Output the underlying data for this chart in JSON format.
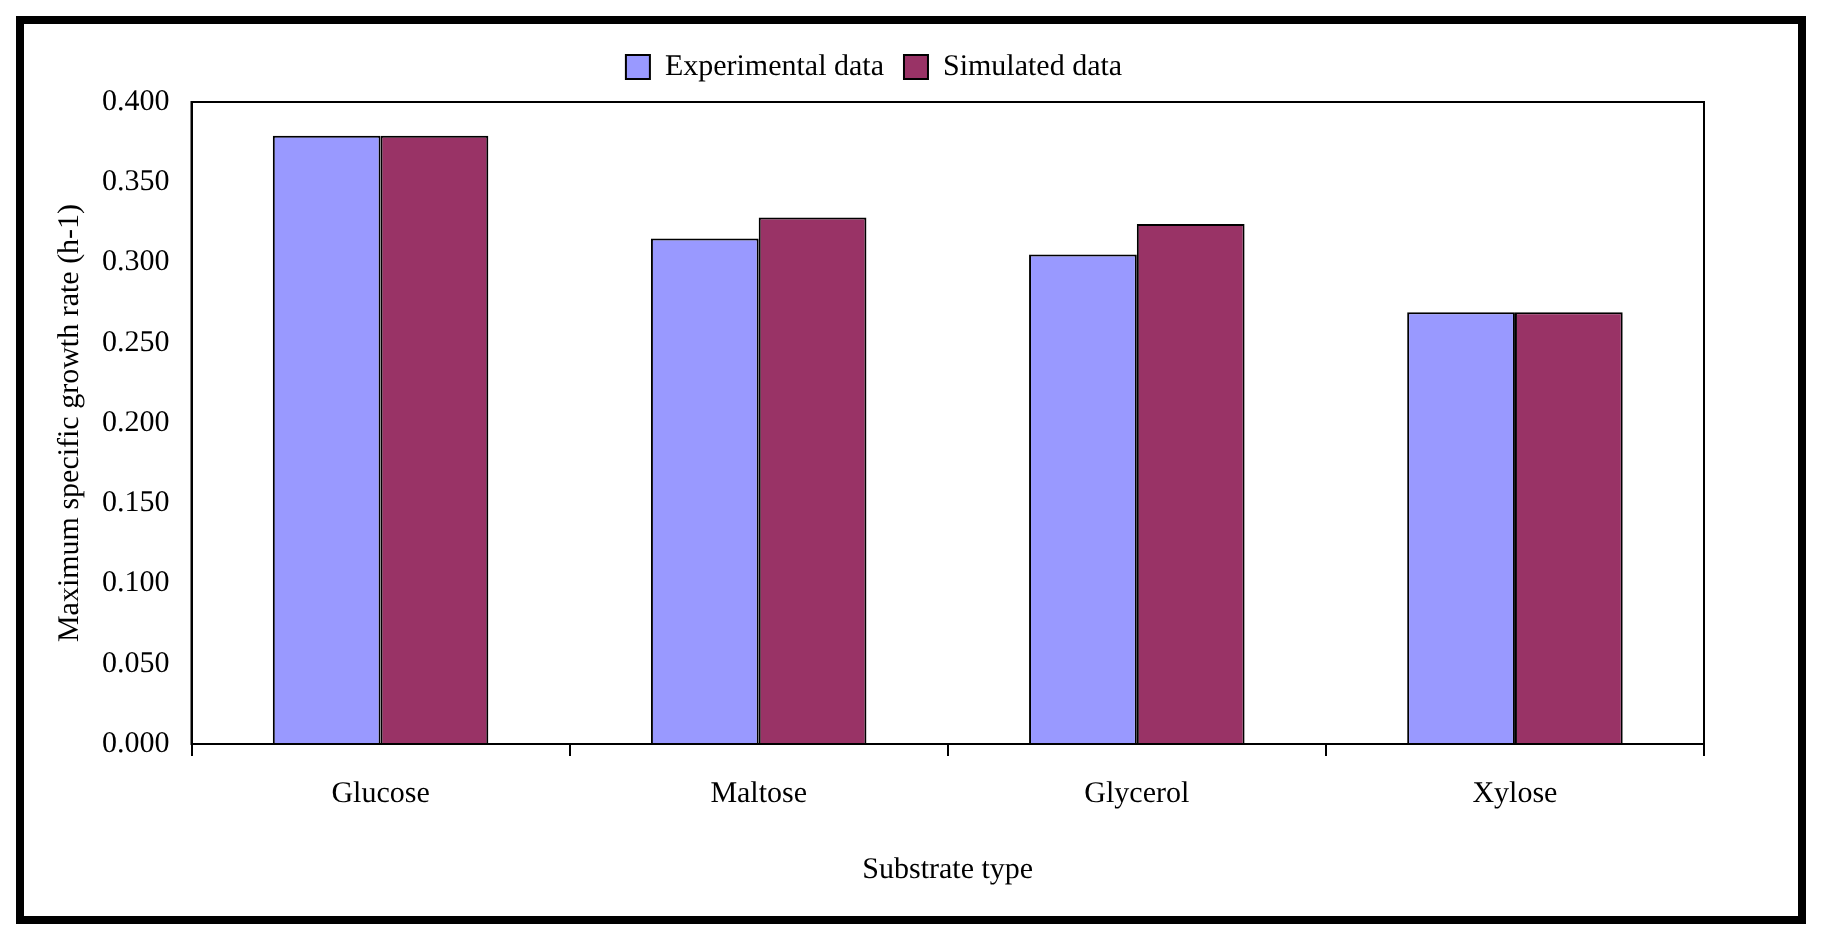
{
  "chart_data": {
    "type": "bar",
    "xlabel": "Substrate type",
    "ylabel": "Maximum specific growth rate (h-1)",
    "categories": [
      "Glucose",
      "Maltose",
      "Glycerol",
      "Xylose"
    ],
    "series": [
      {
        "name": "Experimental data",
        "color": "#9999ff",
        "values": [
          0.379,
          0.315,
          0.305,
          0.269
        ]
      },
      {
        "name": "Simulated data",
        "color": "#993366",
        "values": [
          0.379,
          0.328,
          0.324,
          0.269
        ]
      }
    ],
    "ylim": [
      0,
      0.4
    ],
    "yticks": [
      {
        "value": 0,
        "label": "0.000"
      },
      {
        "value": 0.05,
        "label": "0.050"
      },
      {
        "value": 0.1,
        "label": "0.100"
      },
      {
        "value": 0.15,
        "label": "0.150"
      },
      {
        "value": 0.2,
        "label": "0.200"
      },
      {
        "value": 0.25,
        "label": "0.250"
      },
      {
        "value": 0.3,
        "label": "0.300"
      },
      {
        "value": 0.35,
        "label": "0.350"
      },
      {
        "value": 0.4,
        "label": "0.400"
      }
    ],
    "grid": false,
    "legend": "top"
  }
}
